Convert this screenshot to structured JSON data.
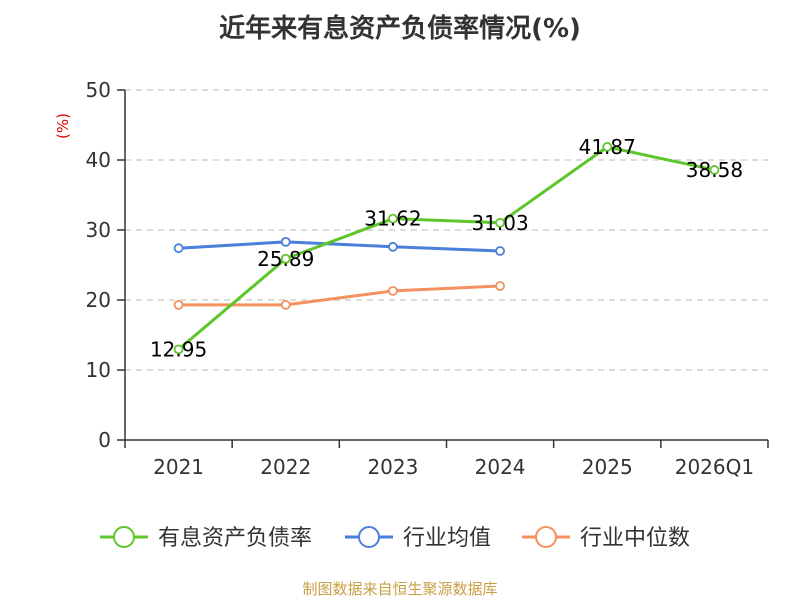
{
  "title": "近年来有息资产负债率情况(%)",
  "source": "制图数据来自恒生聚源数据库",
  "chart_data": {
    "type": "line",
    "title": "近年来有息资产负债率情况(%)",
    "xlabel": "",
    "ylabel": "(%)",
    "categories": [
      "2021",
      "2022",
      "2023",
      "2024",
      "2025",
      "2026Q1"
    ],
    "ylim": [
      0,
      50
    ],
    "yticks": [
      0,
      10,
      20,
      30,
      40,
      50
    ],
    "grid": true,
    "legend": "bottom",
    "series": [
      {
        "name": "有息资产负债率",
        "color": "#5ec62a",
        "values": [
          12.95,
          25.89,
          31.62,
          31.03,
          41.87,
          38.58
        ],
        "data_labels": [
          "12.95",
          "25.89",
          "31.62",
          "31.03",
          "41.87",
          "38.58"
        ]
      },
      {
        "name": "行业均值",
        "color": "#4a7fdc",
        "values": [
          27.4,
          28.3,
          27.6,
          27.0,
          null,
          null
        ]
      },
      {
        "name": "行业中位数",
        "color": "#f4915e",
        "values": [
          19.3,
          19.3,
          21.3,
          22.0,
          null,
          null
        ]
      }
    ]
  }
}
